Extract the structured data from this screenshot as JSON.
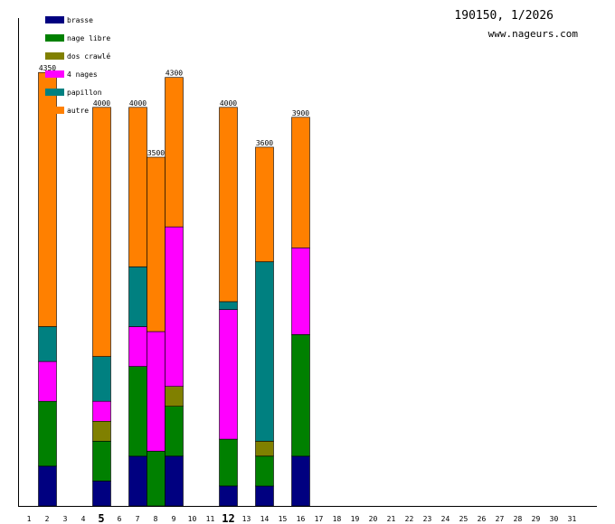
{
  "header": {
    "title": "190150, 1/2026",
    "site": "www.nageurs.com"
  },
  "chart_data": {
    "type": "bar",
    "stacked": true,
    "unit": "m",
    "x_range": [
      1,
      31
    ],
    "ylim": [
      0,
      4400
    ],
    "grid": false,
    "legend_position": "top-left",
    "x_ticks": [
      "1",
      "2",
      "3",
      "4",
      "5",
      "6",
      "7",
      "8",
      "9",
      "10",
      "11",
      "12",
      "13",
      "14",
      "15",
      "16",
      "17",
      "18",
      "19",
      "20",
      "21",
      "22",
      "23",
      "24",
      "25",
      "26",
      "27",
      "28",
      "29",
      "30",
      "31"
    ],
    "x_ticks_bold": [
      "5",
      "12"
    ],
    "categories": [
      "2",
      "5",
      "7",
      "8",
      "9",
      "12",
      "14",
      "16"
    ],
    "totals": [
      "4350",
      "4000",
      "4000",
      "3500",
      "4300",
      "4000",
      "3600",
      "3900"
    ],
    "series": [
      {
        "name": "brasse",
        "color": "#000080",
        "values": [
          400,
          250,
          500,
          0,
          500,
          200,
          200,
          500
        ]
      },
      {
        "name": "nage libre",
        "color": "#008000",
        "values": [
          650,
          400,
          900,
          550,
          500,
          470,
          300,
          1220
        ]
      },
      {
        "name": "dos crawlé",
        "color": "#808000",
        "values": [
          0,
          200,
          0,
          0,
          200,
          0,
          150,
          0
        ]
      },
      {
        "name": "4 nages",
        "color": "#ff00ff",
        "values": [
          400,
          200,
          400,
          1200,
          1600,
          1300,
          0,
          870
        ]
      },
      {
        "name": "papillon",
        "color": "#008080",
        "values": [
          350,
          450,
          600,
          0,
          0,
          80,
          1800,
          0
        ]
      },
      {
        "name": "autre",
        "color": "#ff8000",
        "values": [
          2550,
          2500,
          1600,
          1750,
          1500,
          1950,
          1150,
          1310
        ]
      }
    ]
  }
}
